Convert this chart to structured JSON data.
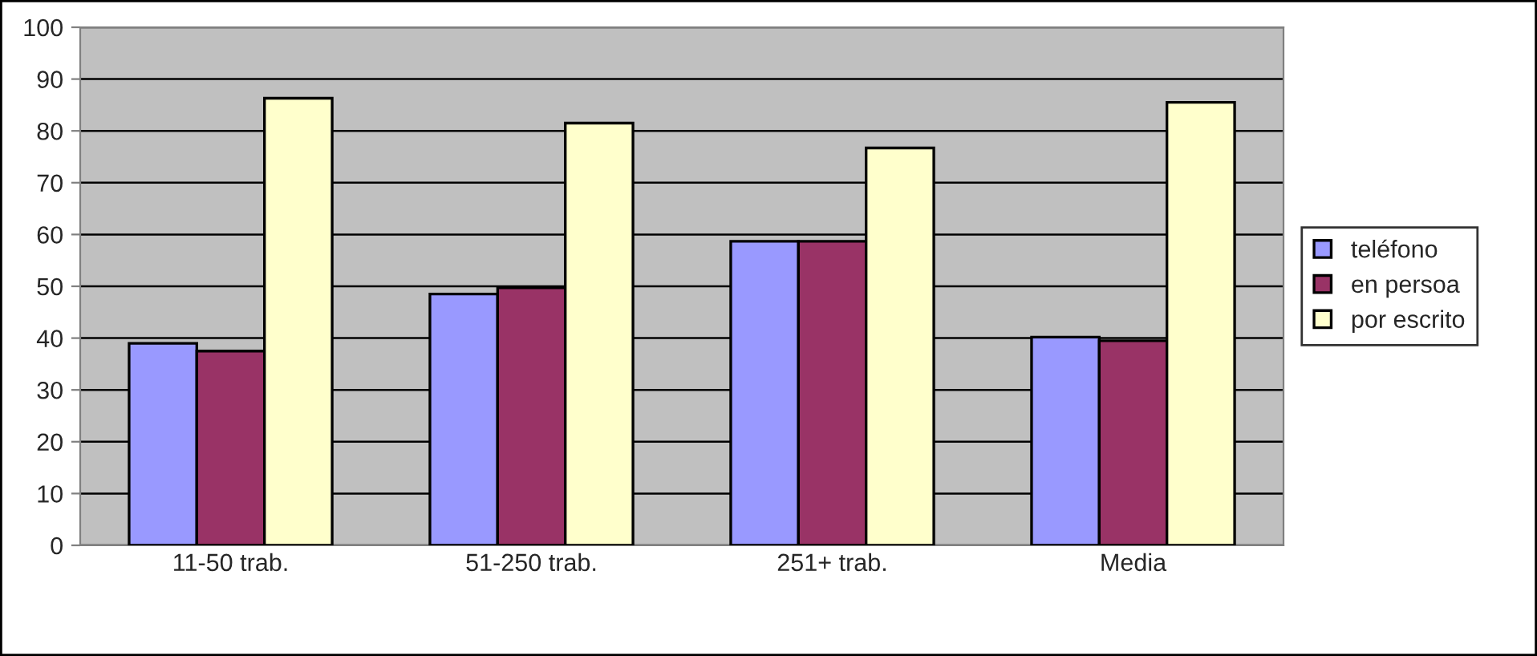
{
  "chart_data": {
    "type": "bar",
    "categories": [
      "11-50 trab.",
      "51-250 trab.",
      "251+ trab.",
      "Media"
    ],
    "series": [
      {
        "name": "teléfono",
        "color": "#9999ff",
        "values": [
          39,
          48.5,
          58.7,
          40.2
        ]
      },
      {
        "name": "en persoa",
        "color": "#993366",
        "values": [
          37.5,
          49.7,
          58.7,
          39.5
        ]
      },
      {
        "name": "por escrito",
        "color": "#ffffcc",
        "values": [
          86.3,
          81.5,
          76.7,
          85.5
        ]
      }
    ],
    "ylim": [
      0,
      100
    ],
    "yticks": [
      0,
      10,
      20,
      30,
      40,
      50,
      60,
      70,
      80,
      90,
      100
    ],
    "grid": "y",
    "legend": "right"
  }
}
